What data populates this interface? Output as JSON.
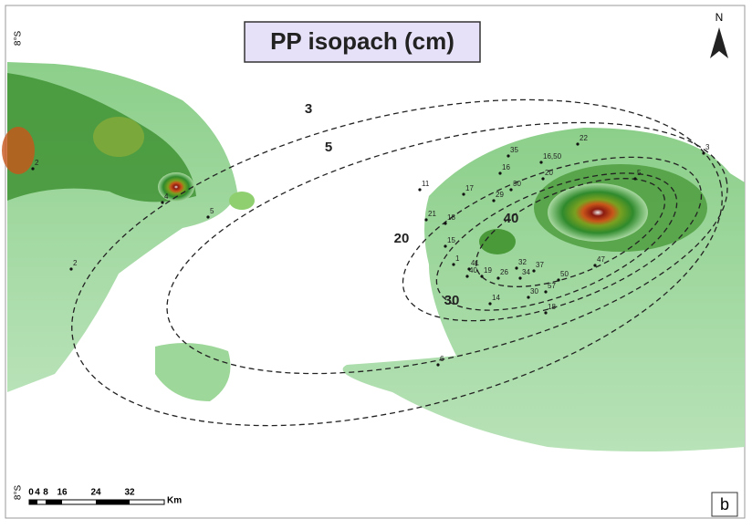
{
  "header": {
    "title": "PP isopach (cm)",
    "north": "N",
    "panel": "b"
  },
  "latitude_labels": [
    "8°S",
    "8°S"
  ],
  "scale_bar": {
    "ticks": [
      "0",
      "4",
      "8",
      "16",
      "24",
      "32"
    ],
    "unit": "Km"
  },
  "isopachs": [
    "3",
    "5",
    "20",
    "30",
    "40"
  ],
  "samples": [
    "2",
    "4",
    "5",
    "2",
    "11",
    "35",
    "16,50",
    "22",
    "3",
    "16",
    "20",
    "17",
    "30",
    "29",
    "5",
    "21",
    "18",
    "15",
    "1",
    "41",
    "40",
    "19",
    "26",
    "32",
    "34",
    "37",
    "50",
    "47",
    "57",
    "30",
    "14",
    "18",
    "6"
  ]
}
